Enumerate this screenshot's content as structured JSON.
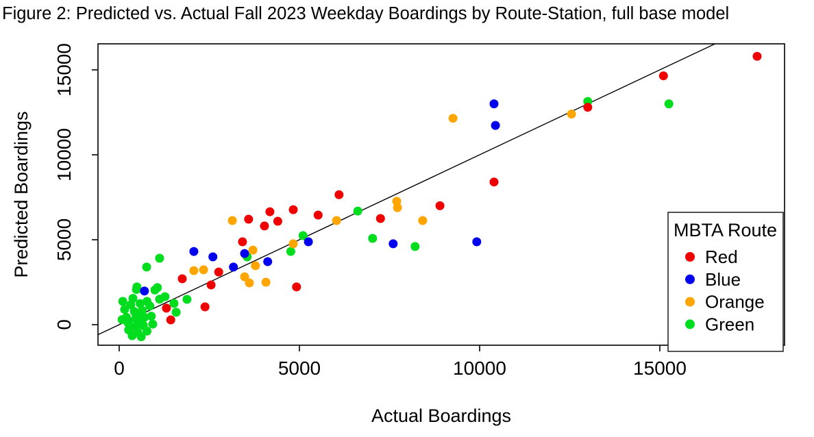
{
  "chart_data": {
    "type": "scatter",
    "title": "Figure 2: Predicted vs. Actual Fall 2023 Weekday Boardings by Route-Station, full base model",
    "xlabel": "Actual Boardings",
    "ylabel": "Predicted Boardings",
    "x_ticks": [
      0,
      5000,
      10000,
      15000
    ],
    "y_ticks": [
      0,
      5000,
      10000,
      15000
    ],
    "x_range": [
      -589,
      18460
    ],
    "y_range": [
      -1210,
      16532
    ],
    "grid": false,
    "reference_line": {
      "type": "identity",
      "description": "y = x diagonal line"
    },
    "legend": {
      "title": "MBTA Route",
      "position": "bottom-right"
    },
    "marker": {
      "shape": "filled-circle",
      "radius_px": 6.5
    },
    "series": [
      {
        "name": "Red",
        "color": "#EE0000",
        "points": [
          [
            17700,
            15800
          ],
          [
            15100,
            14650
          ],
          [
            13000,
            12800
          ],
          [
            10400,
            8400
          ],
          [
            8900,
            7000
          ],
          [
            7250,
            6250
          ],
          [
            6100,
            7650
          ],
          [
            5520,
            6450
          ],
          [
            4830,
            6770
          ],
          [
            4180,
            6650
          ],
          [
            4400,
            6090
          ],
          [
            4030,
            5810
          ],
          [
            3590,
            6210
          ],
          [
            3420,
            4880
          ],
          [
            2760,
            3100
          ],
          [
            2550,
            2340
          ],
          [
            1750,
            2700
          ],
          [
            4920,
            2220
          ],
          [
            2380,
            1050
          ],
          [
            1310,
            970
          ],
          [
            1430,
            280
          ]
        ]
      },
      {
        "name": "Blue",
        "color": "#0000EE",
        "points": [
          [
            10400,
            13000
          ],
          [
            10440,
            11730
          ],
          [
            9920,
            4880
          ],
          [
            7600,
            4760
          ],
          [
            5250,
            4880
          ],
          [
            3170,
            3390
          ],
          [
            4120,
            3710
          ],
          [
            3480,
            4190
          ],
          [
            2600,
            3990
          ],
          [
            2070,
            4310
          ],
          [
            700,
            1980
          ]
        ]
      },
      {
        "name": "Orange",
        "color": "#FFA500",
        "points": [
          [
            12550,
            12400
          ],
          [
            9260,
            12150
          ],
          [
            8420,
            6130
          ],
          [
            7700,
            7260
          ],
          [
            7720,
            6890
          ],
          [
            6030,
            6130
          ],
          [
            4830,
            4760
          ],
          [
            3710,
            4390
          ],
          [
            3780,
            3470
          ],
          [
            3140,
            6130
          ],
          [
            2070,
            3180
          ],
          [
            2340,
            3230
          ],
          [
            3480,
            2820
          ],
          [
            3610,
            2460
          ],
          [
            4070,
            2500
          ]
        ]
      },
      {
        "name": "Green",
        "color": "#00DC1E",
        "points": [
          [
            15250,
            13000
          ],
          [
            13000,
            13140
          ],
          [
            8210,
            4600
          ],
          [
            7030,
            5080
          ],
          [
            6620,
            6690
          ],
          [
            5100,
            5240
          ],
          [
            4760,
            4310
          ],
          [
            3550,
            3990
          ],
          [
            1120,
            3910
          ],
          [
            760,
            3390
          ],
          [
            490,
            2220
          ],
          [
            1060,
            2180
          ],
          [
            1270,
            1650
          ],
          [
            1880,
            1490
          ],
          [
            1520,
            1250
          ],
          [
            1580,
            730
          ],
          [
            480,
            2070
          ],
          [
            990,
            2040
          ],
          [
            100,
            1370
          ],
          [
            320,
            1170
          ],
          [
            580,
            1240
          ],
          [
            770,
            1370
          ],
          [
            420,
            770
          ],
          [
            640,
            830
          ],
          [
            200,
            430
          ],
          [
            450,
            360
          ],
          [
            700,
            430
          ],
          [
            890,
            500
          ],
          [
            1120,
            1500
          ],
          [
            930,
            30
          ],
          [
            670,
            -40
          ],
          [
            450,
            -110
          ],
          [
            260,
            -310
          ],
          [
            510,
            -440
          ],
          [
            770,
            -380
          ],
          [
            610,
            -710
          ],
          [
            360,
            -650
          ],
          [
            150,
            900
          ],
          [
            250,
            100
          ],
          [
            550,
            600
          ],
          [
            850,
            1100
          ],
          [
            380,
            1550
          ],
          [
            80,
            300
          ],
          [
            620,
            150
          ]
        ]
      }
    ]
  }
}
